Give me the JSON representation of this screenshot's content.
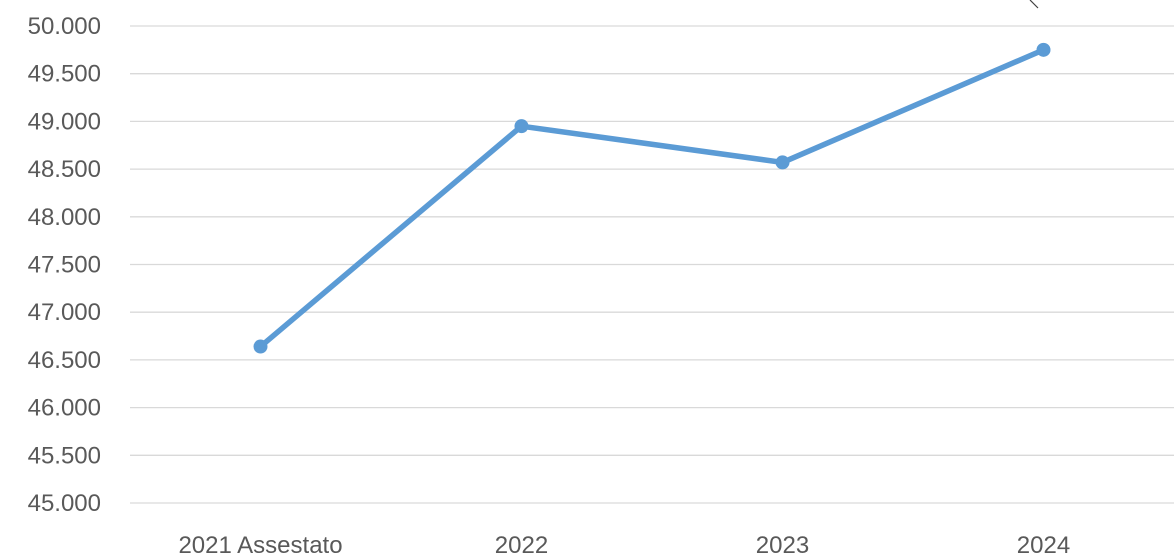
{
  "chart_data": {
    "type": "line",
    "categories": [
      "2021 Assestato",
      "2022",
      "2023",
      "2024"
    ],
    "series": [
      {
        "values": [
          46640,
          48950,
          48570,
          49750
        ]
      }
    ],
    "yticks": [
      "45.000",
      "45.500",
      "46.000",
      "46.500",
      "47.000",
      "47.500",
      "48.000",
      "48.500",
      "49.000",
      "49.500",
      "50.000"
    ],
    "ylim": [
      45000,
      50000
    ],
    "grid": true,
    "line_color": "#5b9bd5",
    "grid_color": "#d9d9d9",
    "text_color": "#595959"
  }
}
